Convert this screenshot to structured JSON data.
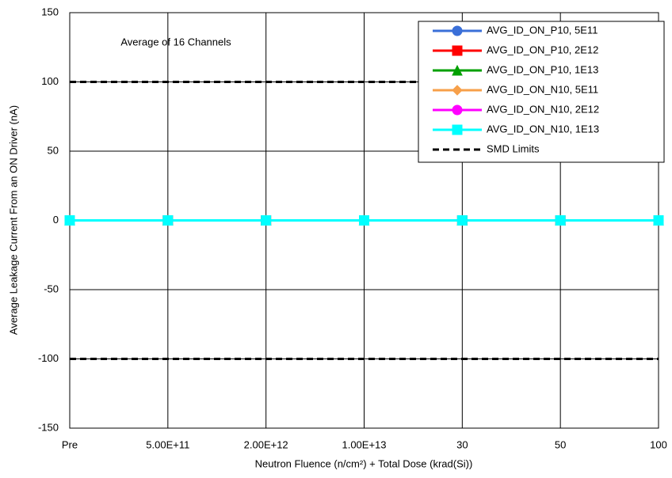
{
  "chart_data": {
    "type": "line",
    "xlabel": "Neutron Fluence (n/cm²) + Total Dose (krad(Si))",
    "ylabel": "Average Leakage Current From an ON Driver (nA)",
    "annotation": "Average of 16 Channels",
    "categories": [
      "Pre",
      "5.00E+11",
      "2.00E+12",
      "1.00E+13",
      "30",
      "50",
      "100"
    ],
    "series": [
      {
        "name": "AVG_ID_ON_P10, 5E11",
        "color": "#3a6fd8",
        "marker": "circle",
        "values": [
          0,
          0,
          0,
          0,
          0,
          0,
          0
        ]
      },
      {
        "name": "AVG_ID_ON_P10, 2E12",
        "color": "#ff0000",
        "marker": "square",
        "values": [
          0,
          0,
          0,
          0,
          0,
          0,
          0
        ]
      },
      {
        "name": "AVG_ID_ON_P10, 1E13",
        "color": "#00a000",
        "marker": "triangle",
        "values": [
          0,
          0,
          0,
          0,
          0,
          0,
          0
        ]
      },
      {
        "name": "AVG_ID_ON_N10, 5E11",
        "color": "#f7a04a",
        "marker": "diamond",
        "values": [
          0,
          0,
          0,
          0,
          0,
          0,
          0
        ]
      },
      {
        "name": "AVG_ID_ON_N10, 2E12",
        "color": "#ff00ff",
        "marker": "circle",
        "values": [
          0,
          0,
          0,
          0,
          0,
          0,
          0
        ]
      },
      {
        "name": "AVG_ID_ON_N10, 1E13",
        "color": "#00ffff",
        "marker": "square",
        "values": [
          0,
          0,
          0,
          0,
          0,
          0,
          0
        ]
      }
    ],
    "limits": {
      "name": "SMD Limits",
      "color": "#000000",
      "values": [
        100,
        -100
      ]
    },
    "ylim": [
      -150,
      150
    ],
    "yticks": [
      -150,
      -100,
      -50,
      0,
      50,
      100,
      150
    ],
    "grid": true,
    "legend": "upper right"
  }
}
